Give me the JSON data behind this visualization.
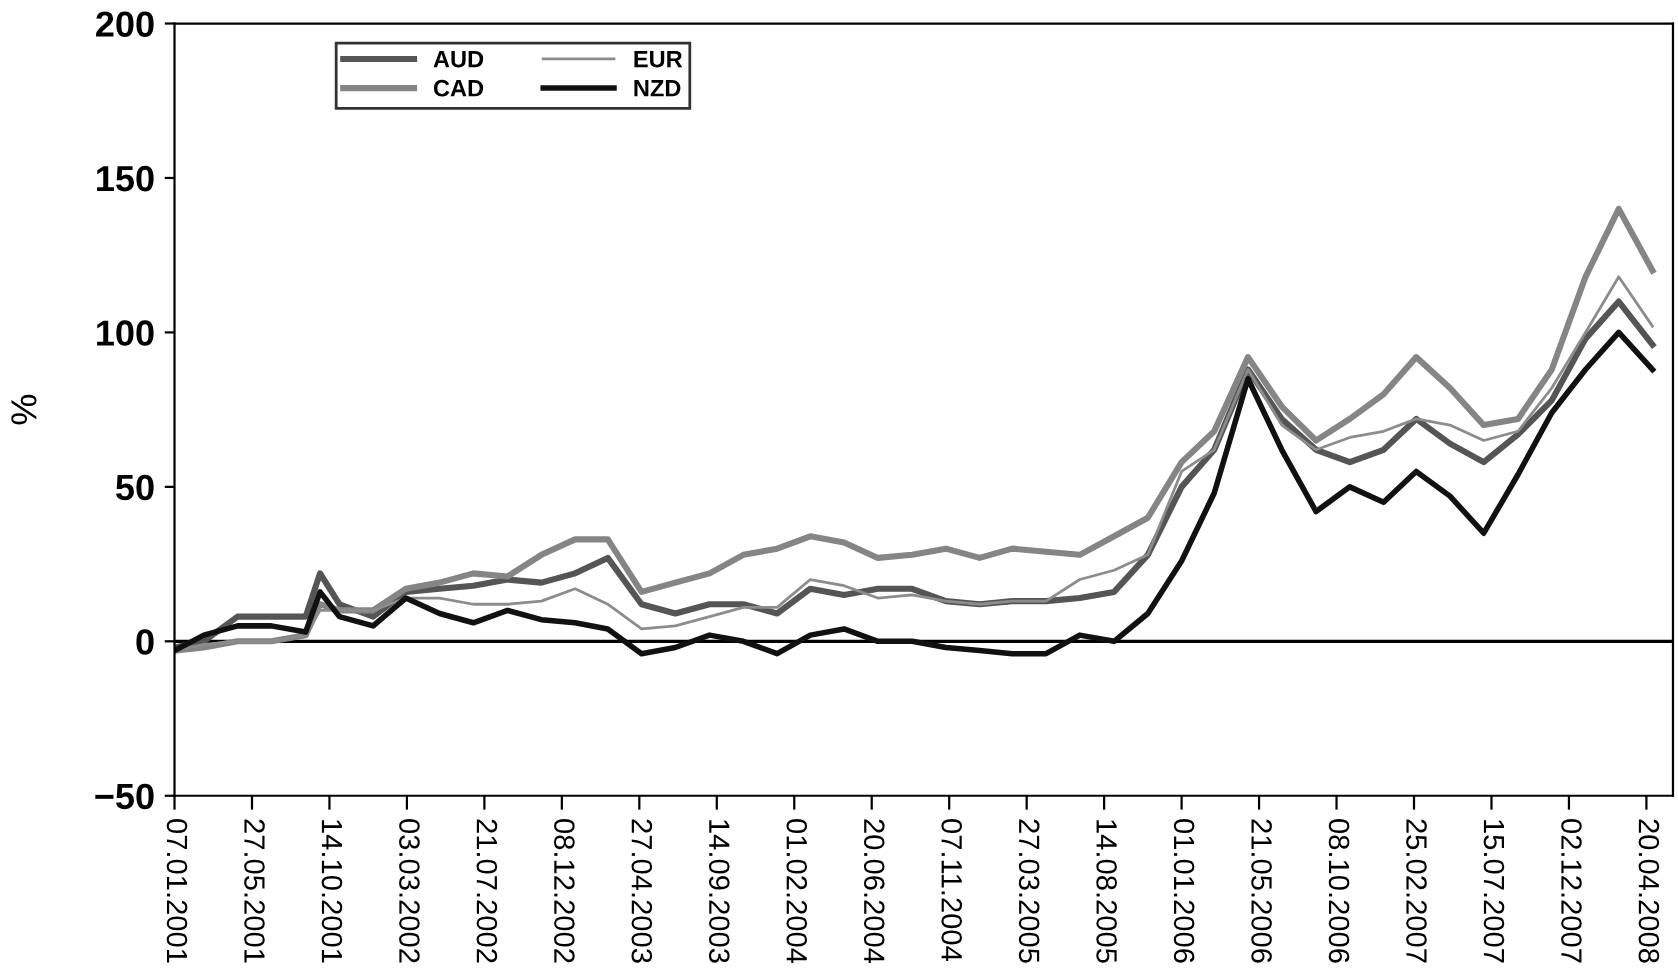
{
  "chart_data": {
    "type": "line",
    "ylabel": "%",
    "x": [
      "2001-01-07",
      "2001-03-01",
      "2001-05-01",
      "2001-07-01",
      "2001-09-01",
      "2001-09-27",
      "2001-11-01",
      "2002-01-01",
      "2002-03-01",
      "2002-05-01",
      "2002-07-01",
      "2002-09-01",
      "2002-11-01",
      "2003-01-01",
      "2003-03-01",
      "2003-05-01",
      "2003-07-01",
      "2003-09-01",
      "2003-11-01",
      "2004-01-01",
      "2004-03-01",
      "2004-05-01",
      "2004-07-01",
      "2004-09-01",
      "2004-11-01",
      "2005-01-01",
      "2005-03-01",
      "2005-05-01",
      "2005-07-01",
      "2005-09-01",
      "2005-11-01",
      "2006-01-01",
      "2006-03-01",
      "2006-05-01",
      "2006-07-01",
      "2006-09-01",
      "2006-11-01",
      "2007-01-01",
      "2007-03-01",
      "2007-05-01",
      "2007-07-01",
      "2007-09-01",
      "2007-11-01",
      "2008-01-01",
      "2008-03-01",
      "2008-05-01"
    ],
    "series": [
      {
        "name": "AUD",
        "color": "#555555",
        "values": [
          -2,
          0,
          8,
          8,
          8,
          22,
          12,
          8,
          16,
          17,
          18,
          20,
          19,
          22,
          27,
          12,
          9,
          12,
          12,
          9,
          17,
          15,
          17,
          17,
          13,
          12,
          13,
          13,
          14,
          16,
          28,
          50,
          62,
          88,
          72,
          62,
          58,
          62,
          72,
          64,
          58,
          67,
          78,
          98,
          110,
          96
        ]
      },
      {
        "name": "CAD",
        "color": "#858585",
        "values": [
          -3,
          -2,
          0,
          0,
          2,
          12,
          10,
          10,
          17,
          19,
          22,
          21,
          28,
          33,
          33,
          16,
          19,
          22,
          28,
          30,
          34,
          32,
          27,
          28,
          30,
          27,
          30,
          29,
          28,
          34,
          40,
          58,
          68,
          92,
          76,
          65,
          72,
          80,
          92,
          82,
          70,
          72,
          88,
          118,
          140,
          120
        ]
      },
      {
        "name": "EUR",
        "color": "#8c8c8c",
        "values": [
          -3,
          -1,
          0,
          0,
          2,
          10,
          10,
          10,
          14,
          14,
          12,
          12,
          13,
          17,
          12,
          4,
          5,
          8,
          11,
          11,
          20,
          18,
          14,
          15,
          13,
          12,
          13,
          13,
          20,
          23,
          28,
          55,
          62,
          88,
          70,
          62,
          66,
          68,
          72,
          70,
          65,
          68,
          82,
          100,
          118,
          102
        ]
      },
      {
        "name": "NZD",
        "color": "#111111",
        "values": [
          -3,
          2,
          5,
          5,
          3,
          16,
          8,
          5,
          14,
          9,
          6,
          10,
          7,
          6,
          4,
          -4,
          -2,
          2,
          0,
          -4,
          2,
          4,
          0,
          0,
          -2,
          -3,
          -4,
          -4,
          2,
          0,
          9,
          26,
          48,
          85,
          62,
          42,
          50,
          45,
          55,
          47,
          35,
          54,
          74,
          88,
          100,
          88
        ]
      }
    ],
    "xlim": [
      "2001-01-07",
      "2008-06-07"
    ],
    "xticks": [
      {
        "value": "2001-01-07",
        "label": "07.01.2001"
      },
      {
        "value": "2001-05-27",
        "label": "27.05.2001"
      },
      {
        "value": "2001-10-14",
        "label": "14.10.2001"
      },
      {
        "value": "2002-03-03",
        "label": "03.03.2002"
      },
      {
        "value": "2002-07-21",
        "label": "21.07.2002"
      },
      {
        "value": "2002-12-08",
        "label": "08.12.2002"
      },
      {
        "value": "2003-04-27",
        "label": "27.04.2003"
      },
      {
        "value": "2003-09-14",
        "label": "14.09.2003"
      },
      {
        "value": "2004-02-01",
        "label": "01.02.2004"
      },
      {
        "value": "2004-06-20",
        "label": "20.06.2004"
      },
      {
        "value": "2004-11-07",
        "label": "07.11.2004"
      },
      {
        "value": "2005-03-27",
        "label": "27.03.2005"
      },
      {
        "value": "2005-08-14",
        "label": "14.08.2005"
      },
      {
        "value": "2006-01-01",
        "label": "01.01.2006"
      },
      {
        "value": "2006-05-21",
        "label": "21.05.2006"
      },
      {
        "value": "2006-10-08",
        "label": "08.10.2006"
      },
      {
        "value": "2007-02-25",
        "label": "25.02.2007"
      },
      {
        "value": "2007-07-15",
        "label": "15.07.2007"
      },
      {
        "value": "2007-12-02",
        "label": "02.12.2007"
      },
      {
        "value": "2008-04-20",
        "label": "20.04.2008"
      }
    ],
    "ylim": [
      -50,
      200
    ],
    "yticks": [
      {
        "value": -50,
        "label": "−50"
      },
      0,
      50,
      100,
      150,
      200
    ],
    "ref_lines": [
      {
        "axis": "y",
        "value": 0,
        "color": "#000000"
      }
    ],
    "legend": "top left",
    "grid": false,
    "marker": "none",
    "line_style": "solid"
  }
}
